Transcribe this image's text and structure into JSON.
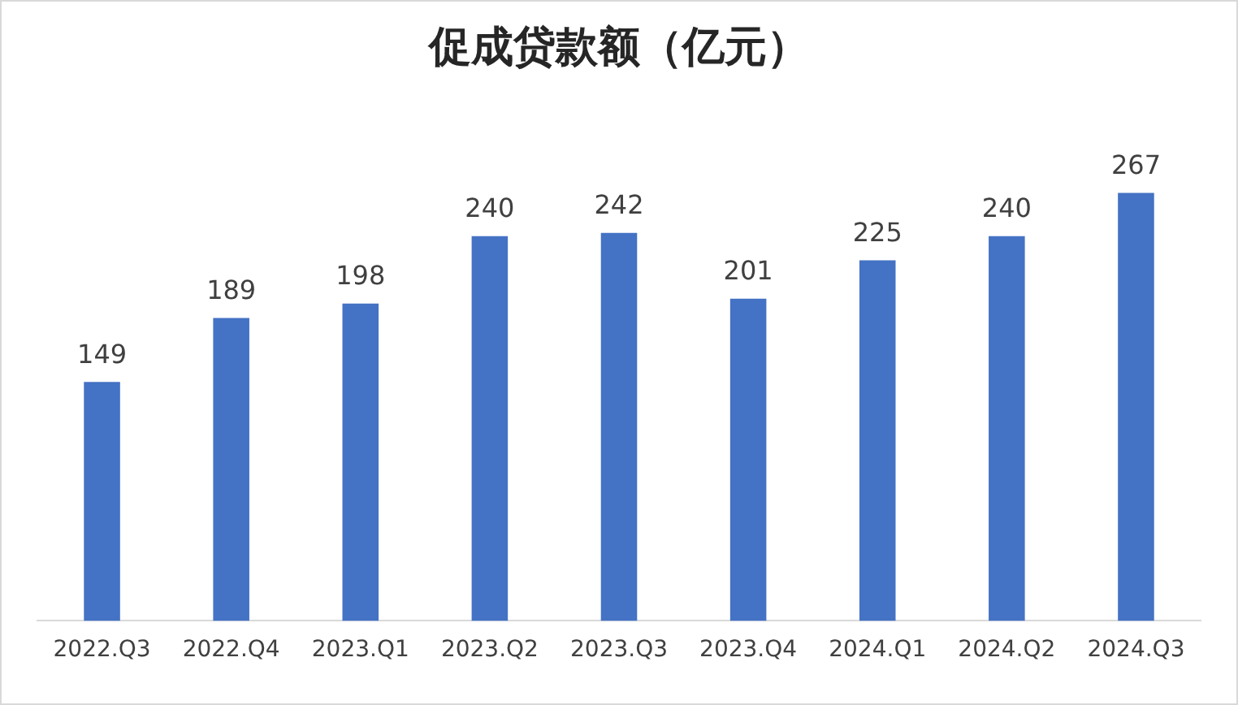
{
  "chart_data": {
    "type": "bar",
    "title": "促成贷款额（亿元）",
    "categories": [
      "2022.Q3",
      "2022.Q4",
      "2023.Q1",
      "2023.Q2",
      "2023.Q3",
      "2023.Q4",
      "2024.Q1",
      "2024.Q2",
      "2024.Q3"
    ],
    "values": [
      149,
      189,
      198,
      240,
      242,
      201,
      225,
      240,
      267
    ],
    "color": "#4472c4",
    "data_labels": true,
    "grid": false,
    "legend": false,
    "tick_labels": "x"
  }
}
